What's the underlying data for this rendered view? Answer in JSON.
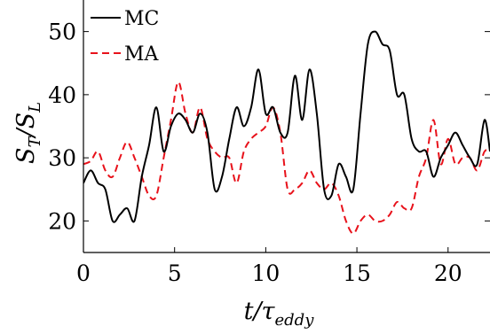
{
  "chart_data": {
    "type": "line",
    "title": "",
    "xlabel": {
      "base": "t/τ",
      "sub": "eddy"
    },
    "ylabel": {
      "base1": "S",
      "sub1": "T",
      "mid": "/S",
      "sub2": "L"
    },
    "xlim": [
      0,
      22.3
    ],
    "ylim": [
      15,
      55
    ],
    "xticks": [
      0,
      5,
      10,
      15,
      20
    ],
    "yticks": [
      20,
      30,
      40,
      50
    ],
    "grid": false,
    "legend_position": "top-left",
    "series": [
      {
        "name": "MC",
        "color": "#000000",
        "dash": "solid",
        "x": [
          0,
          0.4,
          0.8,
          1.2,
          1.6,
          2.0,
          2.4,
          2.8,
          3.2,
          3.6,
          4.0,
          4.4,
          4.8,
          5.2,
          5.6,
          6.0,
          6.4,
          6.8,
          7.2,
          7.6,
          8.0,
          8.4,
          8.8,
          9.2,
          9.6,
          10.0,
          10.4,
          10.8,
          11.2,
          11.6,
          12.0,
          12.4,
          12.8,
          13.2,
          13.6,
          14.0,
          14.4,
          14.8,
          15.2,
          15.6,
          16.0,
          16.4,
          16.8,
          17.2,
          17.6,
          18.0,
          18.4,
          18.8,
          19.2,
          19.6,
          20.0,
          20.4,
          20.8,
          21.2,
          21.6,
          22.0,
          22.3
        ],
        "y": [
          26,
          28,
          26,
          25,
          20,
          21,
          22,
          20,
          27,
          32,
          38,
          31,
          35,
          37,
          36,
          34,
          37,
          34,
          25,
          27,
          33,
          38,
          35,
          38,
          44,
          37,
          38,
          34,
          34,
          43,
          36,
          44,
          37,
          25,
          24,
          29,
          27,
          25,
          37,
          48,
          50,
          48,
          47,
          40,
          40,
          33,
          31,
          31,
          27,
          30,
          32,
          34,
          32,
          30,
          29,
          36,
          31
        ]
      },
      {
        "name": "MA",
        "color": "#e8121b",
        "dash": "dashed",
        "x": [
          0,
          0.4,
          0.8,
          1.2,
          1.6,
          2.0,
          2.4,
          2.8,
          3.2,
          3.6,
          4.0,
          4.4,
          4.8,
          5.2,
          5.6,
          6.0,
          6.4,
          6.8,
          7.2,
          7.6,
          8.0,
          8.4,
          8.8,
          9.2,
          9.6,
          10.0,
          10.4,
          10.8,
          11.2,
          11.6,
          12.0,
          12.4,
          12.8,
          13.2,
          13.6,
          14.0,
          14.4,
          14.8,
          15.2,
          15.6,
          16.0,
          16.4,
          16.8,
          17.2,
          17.6,
          18.0,
          18.4,
          18.8,
          19.2,
          19.6,
          20.0,
          20.4,
          20.8,
          21.2,
          21.6,
          22.0,
          22.3
        ],
        "y": [
          29,
          29.5,
          31,
          28,
          27,
          30,
          32.5,
          30,
          27,
          24,
          24,
          30,
          36,
          42,
          37,
          34,
          38,
          33,
          31,
          30,
          30,
          26,
          31,
          33,
          34,
          35,
          38,
          34,
          25,
          25,
          26,
          28,
          26,
          25,
          26,
          24,
          20,
          18,
          20,
          21,
          20,
          20,
          21,
          23,
          22,
          22,
          27,
          30,
          36,
          29,
          33,
          29,
          30,
          30,
          28,
          31,
          31
        ]
      }
    ]
  }
}
